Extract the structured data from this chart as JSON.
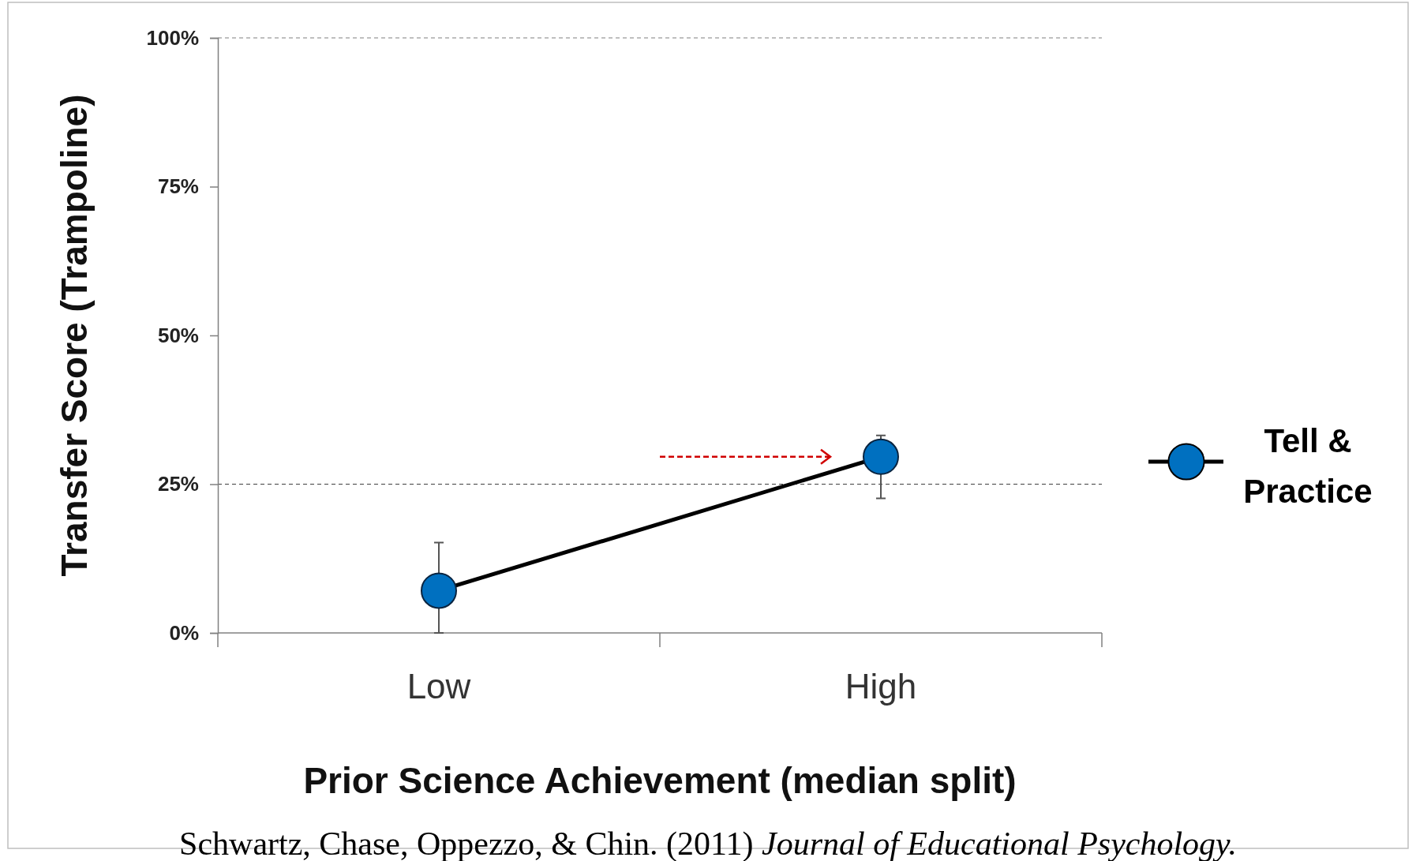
{
  "chart_data": {
    "type": "line",
    "xlabel": "Prior Science Achievement (median split)",
    "ylabel": "Transfer Score (Trampoline)",
    "categories": [
      "Low",
      "High"
    ],
    "series": [
      {
        "name": "Tell & Practice",
        "color": "#000000",
        "colors": [
          "#0070c0",
          "#0070c0"
        ],
        "values": [
          7.1,
          29.6
        ],
        "errors": [
          [
            0,
            15.2
          ],
          [
            22.6,
            33.2
          ]
        ]
      }
    ],
    "ylim": [
      0,
      100
    ],
    "yticks": [
      {
        "value": 0,
        "label": "0%"
      },
      {
        "value": 25,
        "label": "25%"
      },
      {
        "value": 50,
        "label": "50%"
      },
      {
        "value": 75,
        "label": "75%"
      },
      {
        "value": 100,
        "label": "100%"
      }
    ],
    "ref_lines": [
      {
        "axis": "y",
        "value": 100,
        "label": null,
        "color": "#808080",
        "line_style": "dashed"
      },
      {
        "axis": "y",
        "value": 25,
        "label": null,
        "color": "#404040",
        "line_style": "dashed"
      }
    ],
    "grid": false,
    "legend": "right",
    "marker": "circle",
    "line_style": "solid",
    "annotations": [
      "Schwartz, Chase, Oppezzo, & Chin. (2011)",
      "Journal of Educational Psychology."
    ]
  }
}
